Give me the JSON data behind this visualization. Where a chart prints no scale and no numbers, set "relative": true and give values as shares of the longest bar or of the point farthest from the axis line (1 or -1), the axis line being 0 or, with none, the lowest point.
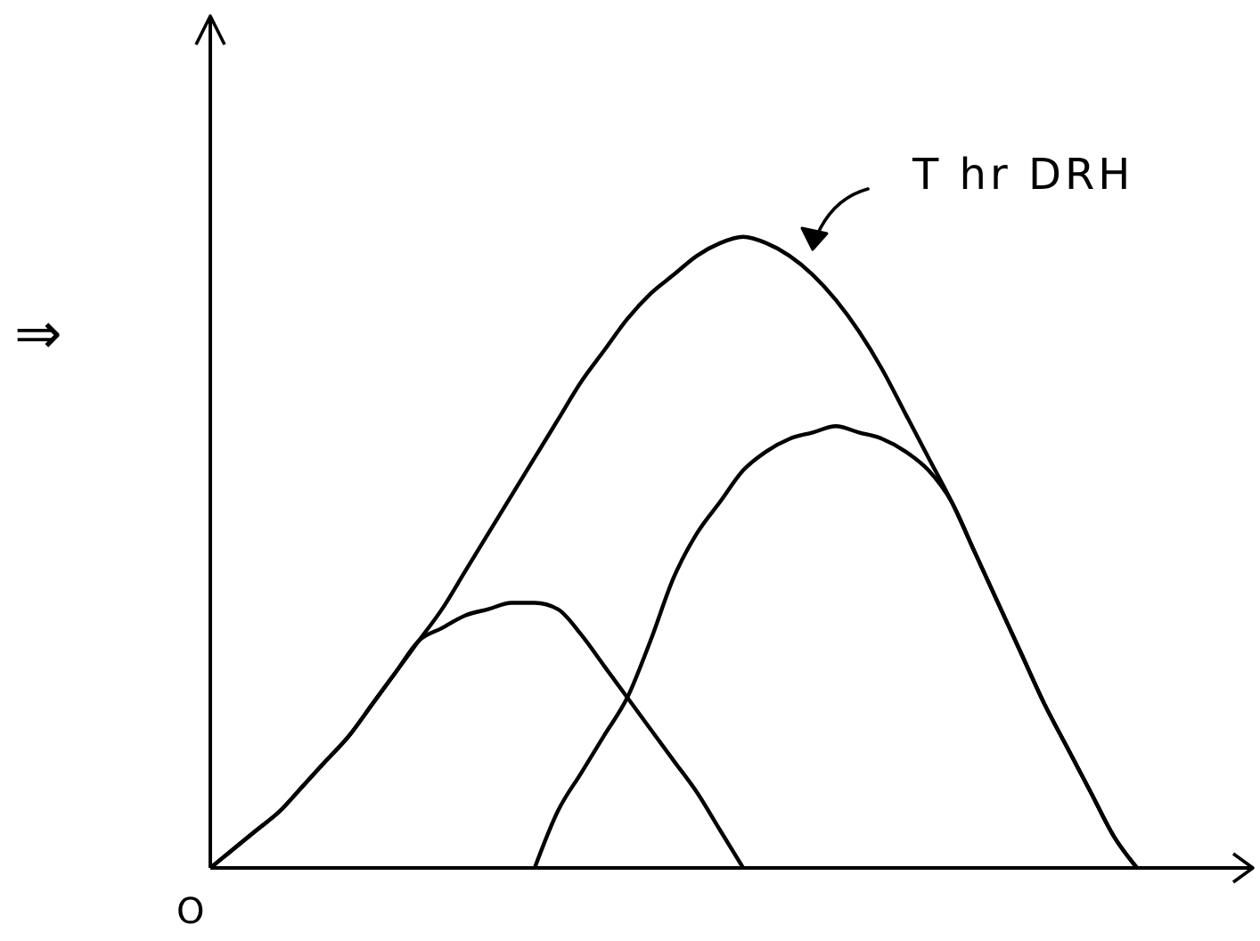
{
  "chart_data": {
    "type": "line",
    "relative": true,
    "ylabel": "⇒",
    "annotations": [
      "T hr DRH",
      "O"
    ],
    "categories": [
      null,
      null,
      null,
      null,
      null,
      null,
      null,
      null,
      null,
      null,
      null,
      null,
      null,
      null,
      null,
      null,
      null,
      null,
      null,
      null,
      null,
      null,
      null,
      null,
      null,
      null,
      null,
      null,
      null,
      null,
      null,
      null,
      null,
      null,
      null,
      null,
      null,
      null,
      null,
      null,
      null,
      null,
      null,
      null,
      null
    ],
    "series": [
      {
        "color": "#000000",
        "values": [
          0,
          0.03,
          0.06,
          0.09,
          0.13,
          0.17,
          0.21,
          0.26,
          0.31,
          0.36,
          0.41,
          0.47,
          0.53,
          0.59,
          0.65,
          0.71,
          0.77,
          0.82,
          0.87,
          0.91,
          0.94,
          0.97,
          0.99,
          1,
          0.99,
          0.97,
          0.94,
          0.9,
          0.85,
          0.79,
          0.72,
          0.65,
          0.58,
          0.5,
          0.42,
          0.34,
          0.26,
          0.19,
          0.12,
          0.05,
          0,
          null,
          null,
          null,
          null
        ]
      },
      {
        "color": "#000000",
        "values": [
          0,
          0.03,
          0.06,
          0.09,
          0.13,
          0.17,
          0.21,
          0.26,
          0.31,
          0.36,
          0.38,
          0.4,
          0.41,
          0.42,
          0.42,
          0.41,
          0.37,
          0.32,
          0.27,
          0.22,
          0.17,
          0.12,
          0.06,
          0,
          null,
          null,
          null,
          null,
          null,
          null,
          null,
          null,
          null,
          null,
          null,
          null,
          null,
          null,
          null,
          null,
          null,
          null,
          null,
          null,
          null
        ]
      },
      {
        "color": "#000000",
        "values": [
          null,
          null,
          null,
          null,
          null,
          null,
          null,
          null,
          null,
          null,
          null,
          null,
          null,
          null,
          0,
          0.09,
          0.15,
          0.21,
          0.27,
          0.36,
          0.46,
          0.53,
          0.58,
          0.63,
          0.66,
          0.68,
          0.69,
          0.7,
          0.69,
          0.68,
          0.66,
          0.63,
          0.58,
          0.5,
          0.42,
          0.34,
          0.26,
          0.19,
          0.12,
          0.05,
          0,
          null,
          null,
          null,
          null
        ]
      }
    ]
  }
}
